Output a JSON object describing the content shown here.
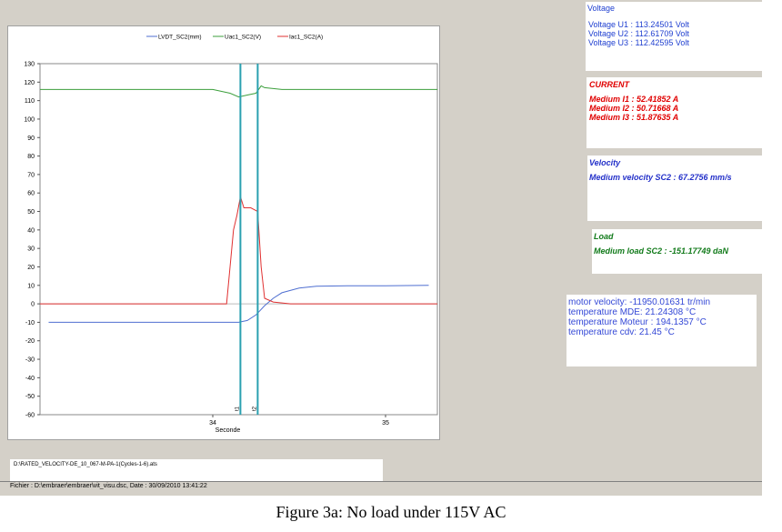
{
  "colors": {
    "lvdt": "#4f6fd1",
    "uac": "#3c9f3c",
    "iac": "#e03030",
    "cursor": "#2aa0b0"
  },
  "info": {
    "voltage": {
      "title": "Voltage",
      "lines": [
        "Voltage U1 : 113.24501 Volt",
        "Voltage U2 : 112.61709 Volt",
        "Voltage U3 : 112.42595 Volt"
      ]
    },
    "current": {
      "title": "CURRENT",
      "lines": [
        "Medium I1 : 52.41852 A",
        "Medium I2 : 50.71668 A",
        "Medium I3 : 51.87635 A"
      ]
    },
    "velocity": {
      "title": "Velocity",
      "lines": [
        "Medium velocity SC2 : 67.2756 mm/s"
      ]
    },
    "load": {
      "title": "Load",
      "lines": [
        "Medium load SC2 : -151.17749 daN"
      ]
    },
    "motor": {
      "lines": [
        "motor velocity: -11950.01631 tr/min",
        "temperature MDE: 21.24308  °C",
        "temperature Moteur : 194.1357  °C",
        "temperature cdv: 21.45  °C"
      ]
    }
  },
  "file_path": "D:\\RATED_VELOCITY-DE_10_067-M-PA-1(Cycles-1-6).ats",
  "status_text": "Fichier : D:\\embraer\\embraer\\vit_visu.dsc, Date : 30/09/2010 13:41:22",
  "caption": "Figure 3a: No load under 115V AC",
  "chart_data": {
    "type": "line",
    "xlabel": "Seconde",
    "ylabel": "",
    "xlim": [
      33.0,
      35.3
    ],
    "ylim": [
      -60,
      130
    ],
    "xticks": [
      34,
      35
    ],
    "yticks": [
      130,
      120,
      110,
      100,
      90,
      80,
      70,
      60,
      50,
      40,
      30,
      20,
      10,
      0,
      -10,
      -20,
      -30,
      -40,
      -50,
      -60
    ],
    "legend_position": "top",
    "cursors": [
      {
        "label": "t1",
        "x": 34.16
      },
      {
        "label": "t2",
        "x": 34.26
      }
    ],
    "series": [
      {
        "name": "LVDT_SC2(mm)",
        "x": [
          33.05,
          34.15,
          34.2,
          34.25,
          34.3,
          34.35,
          34.4,
          34.5,
          34.6,
          34.8,
          35.0,
          35.25
        ],
        "y": [
          -10,
          -10,
          -9,
          -6,
          -1,
          3,
          6,
          8.5,
          9.5,
          9.8,
          9.8,
          10
        ]
      },
      {
        "name": "Uac1_SC2(V)",
        "x": [
          33.0,
          33.5,
          34.0,
          34.1,
          34.15,
          34.2,
          34.25,
          34.28,
          34.3,
          34.4,
          34.6,
          35.0,
          35.3
        ],
        "y": [
          116,
          116,
          116,
          114,
          112,
          113,
          114,
          118,
          117,
          116,
          116,
          116,
          116
        ]
      },
      {
        "name": "Iac1_SC2(A)",
        "x": [
          33.0,
          34.08,
          34.1,
          34.12,
          34.14,
          34.16,
          34.18,
          34.22,
          34.26,
          34.28,
          34.3,
          34.35,
          34.45,
          35.3
        ],
        "y": [
          0,
          0,
          20,
          40,
          48,
          58,
          52,
          52,
          50,
          20,
          3,
          1,
          0,
          0
        ]
      }
    ]
  }
}
